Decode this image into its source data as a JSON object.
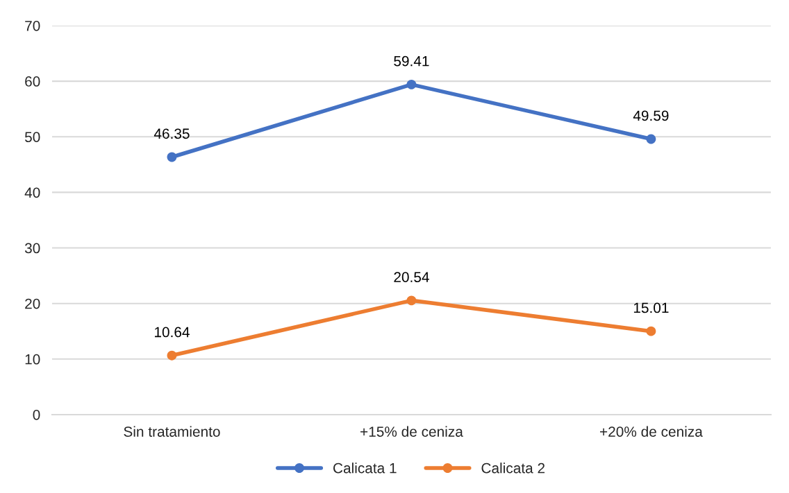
{
  "chart_data": {
    "type": "line",
    "categories": [
      "Sin tratamiento",
      "+15% de ceniza",
      "+20% de ceniza"
    ],
    "series": [
      {
        "name": "Calicata 1",
        "color": "#4472c4",
        "values": [
          46.35,
          59.41,
          49.59
        ]
      },
      {
        "name": "Calicata 2",
        "color": "#ed7d31",
        "values": [
          10.64,
          20.54,
          15.01
        ]
      }
    ],
    "ylim": [
      0,
      70
    ],
    "yticks": [
      0,
      10,
      20,
      30,
      40,
      50,
      60,
      70
    ],
    "grid": "y",
    "legend": "bottom",
    "marker": "circle",
    "line_style": "solid",
    "data_labels": true
  }
}
